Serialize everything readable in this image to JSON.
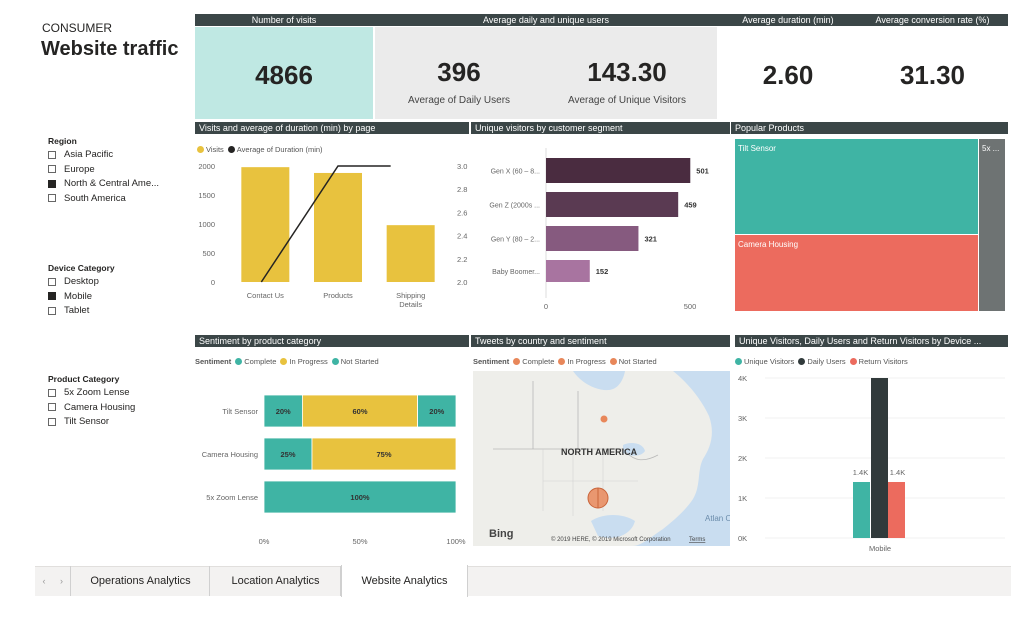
{
  "page": {
    "category": "CONSUMER",
    "title": "Website traffic"
  },
  "headers": {
    "visits": "Number of visits",
    "daily_unique": "Average daily and unique users",
    "duration": "Average duration (min)",
    "conversion": "Average  conversion rate (%)",
    "visits_by_page": "Visits and average of duration (min) by page",
    "unique_by_segment": "Unique visitors by customer segment",
    "popular_products": "Popular Products",
    "sentiment": "Sentiment by product category",
    "tweets": "Tweets by country and sentiment",
    "device": "Unique Visitors, Daily Users and Return Visitors by Device ..."
  },
  "kpis": {
    "visits": "4866",
    "daily_users": "396",
    "daily_users_label": "Average of Daily Users",
    "unique_visitors": "143.30",
    "unique_visitors_label": "Average of Unique Visitors",
    "duration": "2.60",
    "conversion": "31.30"
  },
  "slicers": {
    "region": {
      "title": "Region",
      "items": [
        {
          "label": "Asia Pacific",
          "checked": false
        },
        {
          "label": "Europe",
          "checked": false
        },
        {
          "label": "North & Central Ame...",
          "checked": true
        },
        {
          "label": "South America",
          "checked": false
        }
      ]
    },
    "device": {
      "title": "Device Category",
      "items": [
        {
          "label": "Desktop",
          "checked": false
        },
        {
          "label": "Mobile",
          "checked": true
        },
        {
          "label": "Tablet",
          "checked": false
        }
      ]
    },
    "product": {
      "title": "Product Category",
      "items": [
        {
          "label": "5x Zoom Lense",
          "checked": false
        },
        {
          "label": "Camera Housing",
          "checked": false
        },
        {
          "label": "Tilt Sensor",
          "checked": false
        }
      ]
    }
  },
  "colors": {
    "header": "#3b4647",
    "yellow": "#e8c23e",
    "line": "#252423",
    "teal": "#3fb4a4",
    "orange": "#e8875a",
    "red": "#ec6b5e",
    "dark": "#313a3b",
    "grey": "#6e7373",
    "plum1": "#4a2c40",
    "plum2": "#5a3a52",
    "plum3": "#865a7f",
    "plum4": "#a874a0",
    "kpi_teal_bg": "#bfe8e3",
    "kpi_grey_bg": "#ebebeb",
    "map_water": "#c9ddf0",
    "map_land": "#eeeeea"
  },
  "chart_data": [
    {
      "id": "visits_by_page",
      "type": "bar",
      "legend": [
        "Visits",
        "Average of Duration (min)"
      ],
      "categories": [
        "Contact Us",
        "Products",
        "Shipping Details"
      ],
      "category_lines": [
        [
          "Contact Us"
        ],
        [
          "Products"
        ],
        [
          "Shipping",
          "Details"
        ]
      ],
      "series": [
        {
          "name": "Visits",
          "type": "bar",
          "values": [
            1980,
            1880,
            980
          ]
        },
        {
          "name": "Average of Duration (min)",
          "type": "line",
          "values": [
            2.0,
            3.0,
            3.0
          ]
        }
      ],
      "y_left_ticks": [
        "2000",
        "1500",
        "1000",
        "500",
        "0"
      ],
      "y_right_ticks": [
        "3.0",
        "2.8",
        "2.6",
        "2.4",
        "2.2",
        "2.0"
      ],
      "ylim": [
        0,
        2000
      ],
      "y2lim": [
        2.0,
        3.0
      ]
    },
    {
      "id": "unique_by_segment",
      "type": "bar",
      "orientation": "horizontal",
      "categories": [
        "Gen X (60 – 8...",
        "Gen Z (2000s ...",
        "Gen Y (80 – 2...",
        "Baby Boomer..."
      ],
      "values": [
        501,
        459,
        321,
        152
      ],
      "x_ticks": [
        "0",
        "500"
      ],
      "xlim": [
        0,
        500
      ]
    },
    {
      "id": "popular_products",
      "type": "treemap",
      "items": [
        {
          "label": "Tilt Sensor",
          "color": "#3fb4a4"
        },
        {
          "label": "Camera Housing",
          "color": "#ec6b5e"
        },
        {
          "label": "5x ...",
          "color": "#6e7373"
        }
      ]
    },
    {
      "id": "sentiment_by_product",
      "type": "bar",
      "orientation": "horizontal",
      "stacked": "100%",
      "legend_title": "Sentiment",
      "legend": [
        "Complete",
        "In Progress",
        "Not Started"
      ],
      "categories": [
        "Tilt Sensor",
        "Camera Housing",
        "5x Zoom Lense"
      ],
      "series": [
        {
          "name": "Complete",
          "values": [
            20,
            25,
            100
          ]
        },
        {
          "name": "In Progress",
          "values": [
            60,
            75,
            0
          ]
        },
        {
          "name": "Not Started",
          "values": [
            20,
            0,
            0
          ]
        }
      ],
      "data_labels": [
        [
          "20%",
          "60%",
          "20%"
        ],
        [
          "25%",
          "75%"
        ],
        [
          "100%"
        ]
      ],
      "x_ticks": [
        "0%",
        "50%",
        "100%"
      ]
    },
    {
      "id": "device_visitors",
      "type": "bar",
      "legend": [
        "Unique Visitors",
        "Daily Users",
        "Return Visitors"
      ],
      "categories": [
        "Mobile"
      ],
      "series": [
        {
          "name": "Unique Visitors",
          "values": [
            1400
          ]
        },
        {
          "name": "Daily Users",
          "values": [
            4000
          ]
        },
        {
          "name": "Return Visitors",
          "values": [
            1400
          ]
        }
      ],
      "data_labels": [
        "1.4K",
        "",
        "1.4K"
      ],
      "y_ticks": [
        "4K",
        "3K",
        "2K",
        "1K",
        "0K"
      ],
      "ylim": [
        0,
        4000
      ]
    }
  ],
  "map": {
    "legend_title": "Sentiment",
    "legend": [
      "Complete",
      "In Progress",
      "Not Started"
    ],
    "labels": {
      "continent": "NORTH AMERICA",
      "ocean": "Atlan Ocea"
    },
    "provider": "Bing",
    "attribution": "© 2019 HERE, © 2019 Microsoft Corporation",
    "terms": "Terms"
  },
  "tabs": [
    {
      "label": "Operations Analytics",
      "active": false
    },
    {
      "label": "Location Analytics",
      "active": false
    },
    {
      "label": "Website Analytics",
      "active": true
    }
  ]
}
